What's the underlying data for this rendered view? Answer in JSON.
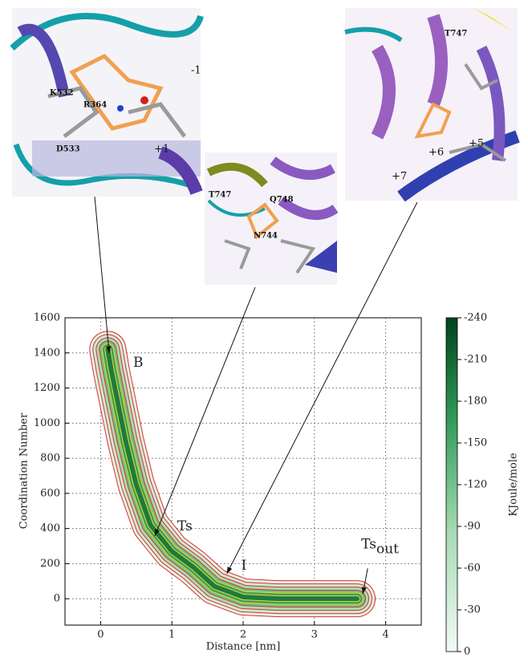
{
  "chart_data": {
    "type": "contour",
    "xlabel": "Distance [nm]",
    "ylabel": "Coordination Number",
    "xlim": [
      -0.5,
      4.5
    ],
    "ylim": [
      -150,
      1600
    ],
    "xticks": [
      0,
      1,
      2,
      3,
      4
    ],
    "yticks": [
      0,
      200,
      400,
      600,
      800,
      1000,
      1200,
      1400,
      1600
    ],
    "grid": true,
    "ridge": {
      "x": [
        0.1,
        0.15,
        0.25,
        0.35,
        0.5,
        0.7,
        1.0,
        1.3,
        1.6,
        2.0,
        2.5,
        3.0,
        3.6
      ],
      "y": [
        1420,
        1300,
        1100,
        900,
        650,
        420,
        270,
        180,
        70,
        10,
        0,
        0,
        0
      ]
    },
    "colorbar": {
      "label": "KJoule/mole",
      "lim": [
        -240,
        0
      ],
      "ticks": [
        -240,
        -210,
        -180,
        -150,
        -120,
        -90,
        -60,
        -30,
        0
      ]
    },
    "annotations": [
      {
        "text": "B",
        "x": 0.12,
        "y": 1399
      },
      {
        "text": "Ts",
        "x": 0.76,
        "y": 357
      },
      {
        "text": "I",
        "x": 1.77,
        "y": 142
      },
      {
        "text": "Ts",
        "sub": "out",
        "x": 3.68,
        "y": 27
      }
    ]
  },
  "insets": [
    {
      "labels": [
        "K532",
        "R364",
        "D533",
        "-1",
        "+1"
      ]
    },
    {
      "labels": [
        "T747",
        "Q748",
        "N744"
      ]
    },
    {
      "labels": [
        "T747",
        "+6",
        "+5",
        "+7"
      ]
    }
  ]
}
